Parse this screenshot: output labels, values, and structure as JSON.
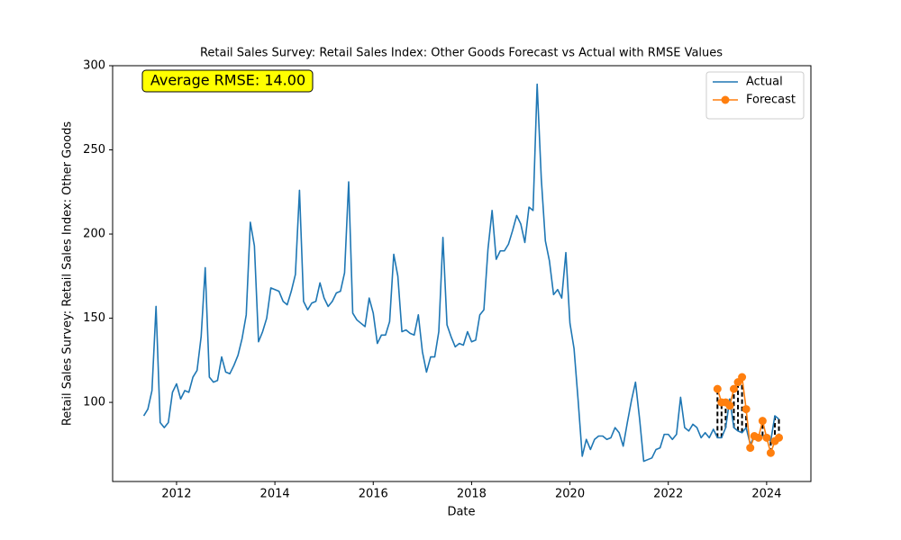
{
  "chart_data": {
    "type": "line",
    "title": "Retail Sales Survey: Retail Sales Index: Other Goods Forecast vs Actual with RMSE Values",
    "xlabel": "Date",
    "ylabel": "Retail Sales Survey: Retail Sales Index: Other Goods",
    "annotation": "Average RMSE: 14.00",
    "legend": "upper right",
    "grid": false,
    "xlim": [
      2010.7,
      2024.9
    ],
    "xticks": [
      2012,
      2014,
      2016,
      2018,
      2020,
      2022,
      2024
    ],
    "ylim": [
      53,
      300
    ],
    "yticks": [
      100,
      150,
      200,
      250,
      300
    ],
    "x": [
      2011.333,
      2011.417,
      2011.5,
      2011.583,
      2011.667,
      2011.75,
      2011.833,
      2011.917,
      2012,
      2012.083,
      2012.167,
      2012.25,
      2012.333,
      2012.417,
      2012.5,
      2012.583,
      2012.667,
      2012.75,
      2012.833,
      2012.917,
      2013,
      2013.083,
      2013.167,
      2013.25,
      2013.333,
      2013.417,
      2013.5,
      2013.583,
      2013.667,
      2013.75,
      2013.833,
      2013.917,
      2014,
      2014.083,
      2014.167,
      2014.25,
      2014.333,
      2014.417,
      2014.5,
      2014.583,
      2014.667,
      2014.75,
      2014.833,
      2014.917,
      2015,
      2015.083,
      2015.167,
      2015.25,
      2015.333,
      2015.417,
      2015.5,
      2015.583,
      2015.667,
      2015.75,
      2015.833,
      2015.917,
      2016,
      2016.083,
      2016.167,
      2016.25,
      2016.333,
      2016.417,
      2016.5,
      2016.583,
      2016.667,
      2016.75,
      2016.833,
      2016.917,
      2017,
      2017.083,
      2017.167,
      2017.25,
      2017.333,
      2017.417,
      2017.5,
      2017.583,
      2017.667,
      2017.75,
      2017.833,
      2017.917,
      2018,
      2018.083,
      2018.167,
      2018.25,
      2018.333,
      2018.417,
      2018.5,
      2018.583,
      2018.667,
      2018.75,
      2018.833,
      2018.917,
      2019,
      2019.083,
      2019.167,
      2019.25,
      2019.333,
      2019.417,
      2019.5,
      2019.583,
      2019.667,
      2019.75,
      2019.833,
      2019.917,
      2020,
      2020.083,
      2020.167,
      2020.25,
      2020.333,
      2020.417,
      2020.5,
      2020.583,
      2020.667,
      2020.75,
      2020.833,
      2020.917,
      2021,
      2021.083,
      2021.167,
      2021.25,
      2021.333,
      2021.417,
      2021.5,
      2021.583,
      2021.667,
      2021.75,
      2021.833,
      2021.917,
      2022,
      2022.083,
      2022.167,
      2022.25,
      2022.333,
      2022.417,
      2022.5,
      2022.583,
      2022.667,
      2022.75,
      2022.833,
      2022.917,
      2023,
      2023.083,
      2023.167,
      2023.25,
      2023.333,
      2023.417,
      2023.5,
      2023.583,
      2023.667,
      2023.75,
      2023.833,
      2023.917,
      2024,
      2024.083,
      2024.167,
      2024.25
    ],
    "series": [
      {
        "name": "Actual",
        "color": "#1f77b4",
        "values": [
          92,
          96,
          107,
          157,
          88,
          85,
          88,
          106,
          111,
          102,
          107,
          106,
          115,
          119,
          139,
          180,
          115,
          112,
          113,
          127,
          118,
          117,
          122,
          128,
          138,
          152,
          207,
          193,
          136,
          142,
          150,
          168,
          167,
          166,
          160,
          158,
          166,
          176,
          226,
          160,
          155,
          159,
          160,
          171,
          162,
          157,
          160,
          165,
          166,
          177,
          231,
          153,
          149,
          147,
          145,
          162,
          153,
          135,
          140,
          140,
          148,
          188,
          175,
          142,
          143,
          141,
          140,
          152,
          130,
          118,
          127,
          127,
          142,
          198,
          146,
          139,
          133,
          135,
          134,
          142,
          136,
          137,
          152,
          155,
          191,
          214,
          185,
          190,
          190,
          194,
          202,
          211,
          206,
          195,
          216,
          214,
          289,
          233,
          196,
          184,
          164,
          167,
          162,
          189,
          147,
          132,
          101,
          68,
          78,
          72,
          78,
          80,
          80,
          78,
          79,
          85,
          82,
          74,
          88,
          101,
          112,
          90,
          65,
          66,
          67,
          72,
          73,
          81,
          81,
          78,
          81,
          103,
          85,
          83,
          87,
          85,
          79,
          82,
          79,
          84,
          79,
          79,
          85,
          102,
          85,
          83,
          82,
          85,
          75,
          80,
          79,
          80,
          80,
          77,
          92,
          90
        ]
      },
      {
        "name": "Forecast",
        "color": "#ff7f0e",
        "marker": "o",
        "values": [
          null,
          null,
          null,
          null,
          null,
          null,
          null,
          null,
          null,
          null,
          null,
          null,
          null,
          null,
          null,
          null,
          null,
          null,
          null,
          null,
          null,
          null,
          null,
          null,
          null,
          null,
          null,
          null,
          null,
          null,
          null,
          null,
          null,
          null,
          null,
          null,
          null,
          null,
          null,
          null,
          null,
          null,
          null,
          null,
          null,
          null,
          null,
          null,
          null,
          null,
          null,
          null,
          null,
          null,
          null,
          null,
          null,
          null,
          null,
          null,
          null,
          null,
          null,
          null,
          null,
          null,
          null,
          null,
          null,
          null,
          null,
          null,
          null,
          null,
          null,
          null,
          null,
          null,
          null,
          null,
          null,
          null,
          null,
          null,
          null,
          null,
          null,
          null,
          null,
          null,
          null,
          null,
          null,
          null,
          null,
          null,
          null,
          null,
          null,
          null,
          null,
          null,
          null,
          null,
          null,
          null,
          null,
          null,
          null,
          null,
          null,
          null,
          null,
          null,
          null,
          null,
          null,
          null,
          null,
          null,
          null,
          null,
          null,
          null,
          null,
          null,
          null,
          null,
          null,
          null,
          null,
          null,
          null,
          null,
          null,
          null,
          null,
          null,
          null,
          null,
          108,
          100,
          100,
          98,
          108,
          112,
          115,
          96,
          73,
          80,
          79,
          89,
          79,
          70,
          77,
          79
        ]
      }
    ]
  }
}
